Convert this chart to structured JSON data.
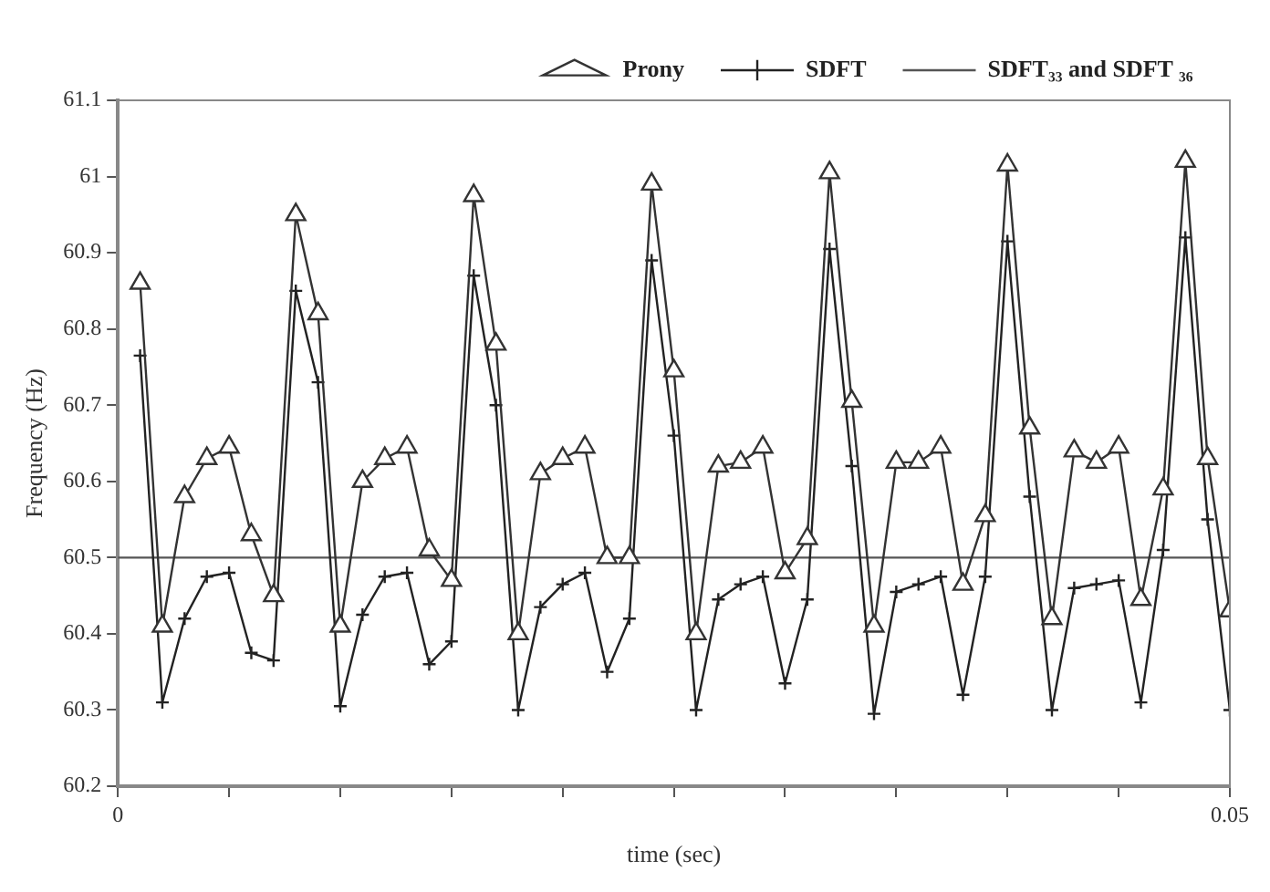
{
  "chart_data": {
    "type": "line",
    "xlabel": "time (sec)",
    "ylabel": "Frequency (Hz)",
    "x": [
      0.001,
      0.002,
      0.003,
      0.004,
      0.005,
      0.006,
      0.007,
      0.008,
      0.009,
      0.01,
      0.011,
      0.012,
      0.013,
      0.014,
      0.015,
      0.016,
      0.017,
      0.018,
      0.019,
      0.02,
      0.021,
      0.022,
      0.023,
      0.024,
      0.025,
      0.026,
      0.027,
      0.028,
      0.029,
      0.03,
      0.031,
      0.032,
      0.033,
      0.034,
      0.035,
      0.036,
      0.037,
      0.038,
      0.039,
      0.04,
      0.041,
      0.042,
      0.043,
      0.044,
      0.045,
      0.046,
      0.047,
      0.048,
      0.049,
      0.05
    ],
    "series": [
      {
        "name": "Prony",
        "color": "#333333",
        "marker": "triangle",
        "values": [
          60.86,
          60.41,
          60.58,
          60.63,
          60.645,
          60.53,
          60.45,
          60.95,
          60.82,
          60.41,
          60.6,
          60.63,
          60.645,
          60.51,
          60.47,
          60.975,
          60.78,
          60.4,
          60.61,
          60.63,
          60.645,
          60.5,
          60.5,
          60.99,
          60.745,
          60.4,
          60.62,
          60.625,
          60.645,
          60.48,
          60.525,
          61.005,
          60.705,
          60.41,
          60.625,
          60.625,
          60.645,
          60.465,
          60.555,
          61.015,
          60.67,
          60.42,
          60.64,
          60.625,
          60.645,
          60.445,
          60.59,
          61.02,
          60.63,
          60.43
        ]
      },
      {
        "name": "SDFT",
        "color": "#222222",
        "marker": "cross",
        "values": [
          60.765,
          60.31,
          60.42,
          60.475,
          60.48,
          60.375,
          60.365,
          60.85,
          60.73,
          60.305,
          60.425,
          60.475,
          60.48,
          60.36,
          60.39,
          60.87,
          60.7,
          60.3,
          60.435,
          60.465,
          60.48,
          60.35,
          60.42,
          60.89,
          60.66,
          60.3,
          60.445,
          60.465,
          60.475,
          60.335,
          60.445,
          60.905,
          60.62,
          60.295,
          60.455,
          60.465,
          60.475,
          60.32,
          60.475,
          60.915,
          60.58,
          60.3,
          60.46,
          60.465,
          60.47,
          60.31,
          60.51,
          60.92,
          60.55,
          60.3
        ]
      },
      {
        "name": "SDFT₃₃ and SDFT ₃₆",
        "color": "#555555",
        "marker": "none",
        "x": [
          0,
          0.05
        ],
        "values": [
          60.5,
          60.5
        ]
      }
    ],
    "xlim": [
      0,
      0.05
    ],
    "xticks": [
      0,
      {
        "value": 0.005,
        "label": null
      },
      {
        "value": 0.01,
        "label": null
      },
      {
        "value": 0.015,
        "label": null
      },
      {
        "value": 0.02,
        "label": null
      },
      {
        "value": 0.025,
        "label": null
      },
      {
        "value": 0.03,
        "label": null
      },
      {
        "value": 0.035,
        "label": null
      },
      {
        "value": 0.04,
        "label": null
      },
      {
        "value": 0.045,
        "label": null
      },
      0.05
    ],
    "ylim": [
      60.2,
      61.1
    ],
    "yticks": [
      60.2,
      60.3,
      60.4,
      60.5,
      60.6,
      60.7,
      60.8,
      60.9,
      61,
      61.1
    ],
    "grid": false,
    "legend": "top",
    "line_style": "solid"
  }
}
